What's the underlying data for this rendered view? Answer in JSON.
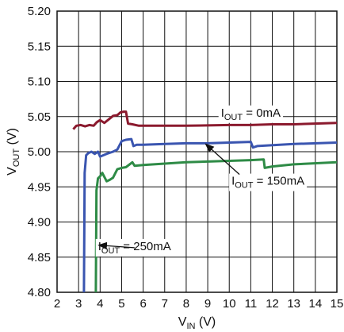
{
  "chart_data": {
    "type": "line",
    "xlabel": {
      "main": "V",
      "sub": "IN",
      "unit": " (V)"
    },
    "ylabel": {
      "main": "V",
      "sub": "OUT",
      "unit": " (V)"
    },
    "xlim": [
      2,
      15
    ],
    "ylim": [
      4.8,
      5.2
    ],
    "x_ticks": [
      "2",
      "3",
      "4",
      "5",
      "6",
      "7",
      "8",
      "9",
      "10",
      "11",
      "12",
      "13",
      "14",
      "15"
    ],
    "y_ticks": [
      "4.80",
      "4.85",
      "4.90",
      "4.95",
      "5.00",
      "5.05",
      "5.10",
      "5.15",
      "5.20"
    ],
    "grid": true,
    "series": [
      {
        "name_main": "I",
        "name_sub": "OUT",
        "name_rest": " = 0mA",
        "color": "#8b1a2e",
        "x": [
          2.75,
          2.9,
          3.1,
          3.3,
          3.5,
          3.7,
          3.85,
          4.0,
          4.2,
          4.4,
          4.6,
          4.8,
          4.95,
          5.1,
          5.2,
          5.3,
          5.5,
          5.8,
          6.5,
          8,
          10,
          11,
          12,
          13,
          15
        ],
        "y": [
          5.032,
          5.037,
          5.038,
          5.036,
          5.038,
          5.037,
          5.042,
          5.045,
          5.041,
          5.046,
          5.051,
          5.052,
          5.056,
          5.057,
          5.057,
          5.04,
          5.039,
          5.037,
          5.037,
          5.037,
          5.038,
          5.038,
          5.039,
          5.039,
          5.041
        ]
      },
      {
        "name_main": "I",
        "name_sub": "OUT",
        "name_rest": " = 150mA",
        "color": "#3a55b0",
        "x": [
          3.25,
          3.28,
          3.35,
          3.45,
          3.6,
          3.75,
          3.9,
          4.0,
          4.3,
          4.6,
          4.8,
          5.0,
          5.2,
          5.45,
          5.55,
          5.7,
          6.0,
          7,
          8,
          9,
          10,
          11,
          11.1,
          11.3,
          13,
          15
        ],
        "y": [
          4.8,
          4.97,
          4.995,
          4.998,
          5.0,
          4.997,
          5.0,
          4.993,
          4.997,
          5.0,
          5.003,
          5.015,
          5.017,
          5.018,
          5.008,
          5.01,
          5.01,
          5.011,
          5.012,
          5.012,
          5.013,
          5.014,
          5.006,
          5.008,
          5.011,
          5.013
        ]
      },
      {
        "name_main": "I",
        "name_sub": "OUT",
        "name_rest": " = 250mA",
        "color": "#2e8b46",
        "x": [
          3.8,
          3.83,
          3.9,
          4.0,
          4.1,
          4.3,
          4.45,
          4.6,
          4.8,
          5.0,
          5.2,
          5.5,
          5.6,
          6.0,
          7,
          8,
          9,
          10,
          11,
          11.6,
          11.65,
          12,
          13,
          15
        ],
        "y": [
          4.8,
          4.945,
          4.962,
          4.965,
          4.97,
          4.958,
          4.96,
          4.963,
          4.975,
          4.977,
          4.978,
          4.985,
          4.98,
          4.981,
          4.983,
          4.985,
          4.986,
          4.987,
          4.988,
          4.989,
          4.977,
          4.979,
          4.982,
          4.985
        ]
      }
    ],
    "annotations": [
      {
        "series": 0,
        "label_at": [
          11.0,
          5.05
        ]
      },
      {
        "series": 1,
        "label_at": [
          11.8,
          4.953
        ],
        "arrow_to": [
          8.9,
          5.011
        ]
      },
      {
        "series": 2,
        "label_at": [
          5.6,
          4.86
        ],
        "arrow_to": [
          3.93,
          4.867
        ]
      }
    ]
  }
}
